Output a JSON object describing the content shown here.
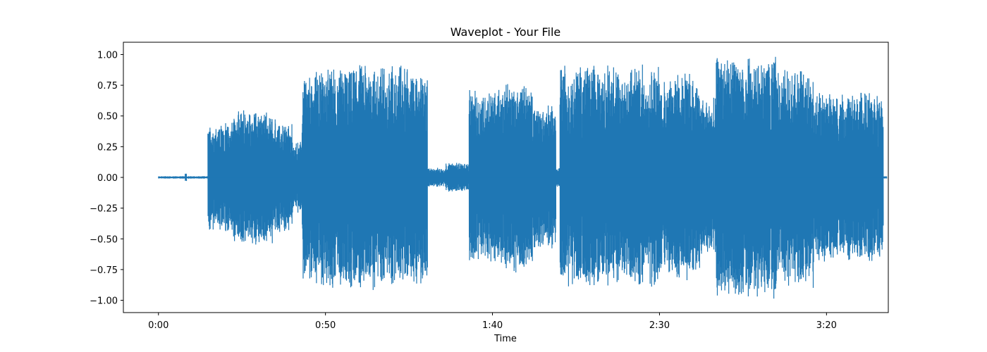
{
  "chart_data": {
    "type": "line",
    "title": "Waveplot - Your File",
    "xlabel": "Time",
    "ylabel": "",
    "xlim_seconds": [
      -10.5,
      218.5
    ],
    "ylim": [
      -1.1,
      1.1
    ],
    "x_ticks": [
      {
        "value": 0,
        "label": "0:00"
      },
      {
        "value": 50,
        "label": "0:50"
      },
      {
        "value": 100,
        "label": "1:40"
      },
      {
        "value": 150,
        "label": "2:30"
      },
      {
        "value": 200,
        "label": "3:20"
      }
    ],
    "y_ticks": [
      {
        "value": 1.0,
        "label": "1.00"
      },
      {
        "value": 0.75,
        "label": "0.75"
      },
      {
        "value": 0.5,
        "label": "0.50"
      },
      {
        "value": 0.25,
        "label": "0.25"
      },
      {
        "value": 0.0,
        "label": "0.00"
      },
      {
        "value": -0.25,
        "label": "−0.25"
      },
      {
        "value": -0.5,
        "label": "−0.50"
      },
      {
        "value": -0.75,
        "label": "−0.75"
      },
      {
        "value": -1.0,
        "label": "−1.00"
      }
    ],
    "grid": false,
    "series": [
      {
        "color": "#1f77b4",
        "segments": [
          {
            "t0": 0.0,
            "t1": 8.0,
            "peak": 0.01
          },
          {
            "t0": 8.0,
            "t1": 8.4,
            "peak": 0.04
          },
          {
            "t0": 8.4,
            "t1": 14.8,
            "peak": 0.01
          },
          {
            "t0": 14.8,
            "t1": 22.0,
            "peak": 0.45
          },
          {
            "t0": 22.0,
            "t1": 29.0,
            "peak": 0.55
          },
          {
            "t0": 29.0,
            "t1": 35.0,
            "peak": 0.55
          },
          {
            "t0": 35.0,
            "t1": 40.0,
            "peak": 0.45
          },
          {
            "t0": 40.0,
            "t1": 43.0,
            "peak": 0.3
          },
          {
            "t0": 43.0,
            "t1": 46.0,
            "peak": 0.85
          },
          {
            "t0": 46.0,
            "t1": 60.0,
            "peak": 0.9
          },
          {
            "t0": 60.0,
            "t1": 75.0,
            "peak": 0.93
          },
          {
            "t0": 75.0,
            "t1": 80.5,
            "peak": 0.88
          },
          {
            "t0": 80.5,
            "t1": 86.0,
            "peak": 0.08
          },
          {
            "t0": 86.0,
            "t1": 89.0,
            "peak": 0.12
          },
          {
            "t0": 89.0,
            "t1": 93.0,
            "peak": 0.12
          },
          {
            "t0": 93.0,
            "t1": 103.0,
            "peak": 0.72
          },
          {
            "t0": 103.0,
            "t1": 112.0,
            "peak": 0.78
          },
          {
            "t0": 112.0,
            "t1": 119.0,
            "peak": 0.6
          },
          {
            "t0": 119.0,
            "t1": 120.2,
            "peak": 0.08
          },
          {
            "t0": 120.2,
            "t1": 135.0,
            "peak": 0.92
          },
          {
            "t0": 135.0,
            "t1": 150.0,
            "peak": 0.92
          },
          {
            "t0": 150.0,
            "t1": 162.0,
            "peak": 0.85
          },
          {
            "t0": 162.0,
            "t1": 167.0,
            "peak": 0.65
          },
          {
            "t0": 167.0,
            "t1": 185.0,
            "peak": 0.99
          },
          {
            "t0": 185.0,
            "t1": 196.0,
            "peak": 0.9
          },
          {
            "t0": 196.0,
            "t1": 204.0,
            "peak": 0.7
          },
          {
            "t0": 204.0,
            "t1": 217.0,
            "peak": 0.7
          },
          {
            "t0": 217.0,
            "t1": 218.0,
            "peak": 0.01
          }
        ]
      }
    ]
  }
}
